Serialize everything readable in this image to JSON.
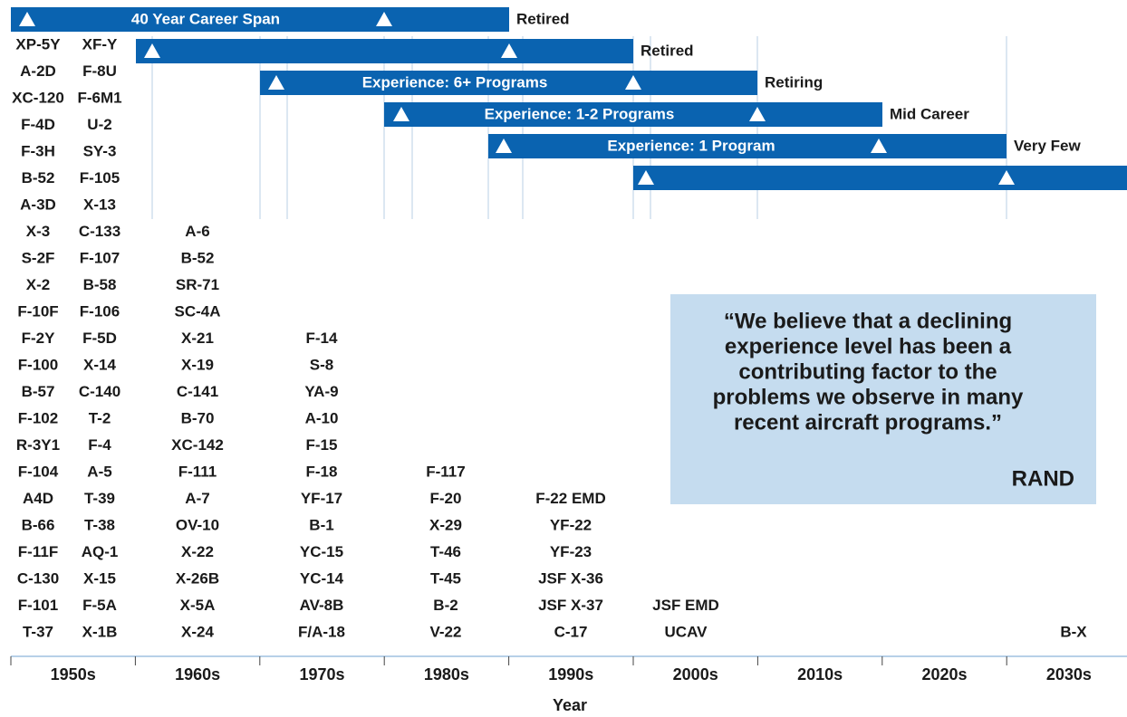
{
  "bars": [
    {
      "label": "40 Year Career Span",
      "status": "Retired"
    },
    {
      "status": "Retired"
    },
    {
      "label": "Experience: 6+ Programs",
      "status": "Retiring"
    },
    {
      "label": "Experience: 1-2 Programs",
      "status": "Mid Career"
    },
    {
      "label": "Experience: 1 Program",
      "status": "Very Few"
    },
    {}
  ],
  "columns": [
    [
      "XP-5Y",
      "A-2D",
      "XC-120",
      "F-4D",
      "F-3H",
      "B-52",
      "A-3D",
      "X-3",
      "S-2F",
      "X-2",
      "F-10F",
      "F-2Y",
      "F-100",
      "B-57",
      "F-102",
      "R-3Y1",
      "F-104",
      "A4D",
      "B-66",
      "F-11F",
      "C-130",
      "F-101",
      "T-37"
    ],
    [
      "XF-Y",
      "F-8U",
      "F-6M1",
      "U-2",
      "SY-3",
      "F-105",
      "X-13",
      "C-133",
      "F-107",
      "B-58",
      "F-106",
      "F-5D",
      "X-14",
      "C-140",
      "T-2",
      "F-4",
      "A-5",
      "T-39",
      "T-38",
      "AQ-1",
      "X-15",
      "F-5A",
      "X-1B"
    ],
    [
      "A-6",
      "B-52",
      "SR-71",
      "SC-4A",
      "X-21",
      "X-19",
      "C-141",
      "B-70",
      "XC-142",
      "F-111",
      "A-7",
      "OV-10",
      "X-22",
      "X-26B",
      "X-5A",
      "X-24"
    ],
    [
      "F-14",
      "S-8",
      "YA-9",
      "A-10",
      "F-15",
      "F-18",
      "YF-17",
      "B-1",
      "YC-15",
      "YC-14",
      "AV-8B",
      "F/A-18"
    ],
    [
      "F-117",
      "F-20",
      "X-29",
      "T-46",
      "T-45",
      "B-2",
      "V-22"
    ],
    [
      "F-22 EMD",
      "YF-22",
      "YF-23",
      "JSF X-36",
      "JSF X-37",
      "C-17"
    ],
    [
      "JSF EMD",
      "UCAV"
    ],
    [
      "B-X"
    ]
  ],
  "decades": [
    "1950s",
    "1960s",
    "1970s",
    "1980s",
    "1990s",
    "2000s",
    "2010s",
    "2020s",
    "2030s"
  ],
  "axis_label": "Year",
  "quote": {
    "lines": [
      "“We believe that a declining",
      "experience level has been a",
      "contributing factor to the",
      "problems we observe in many",
      "recent aircraft programs.”"
    ],
    "source": "RAND"
  }
}
